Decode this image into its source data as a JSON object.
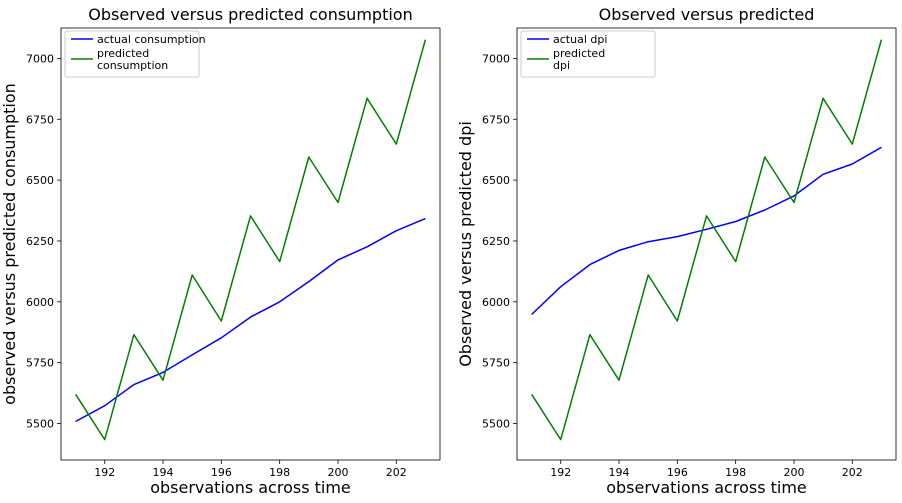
{
  "chart_data": [
    {
      "type": "line",
      "title": "Observed versus predicted consumption",
      "xlabel": "observations across time",
      "ylabel": "observed versus predicted consumption",
      "x": [
        191,
        192,
        193,
        194,
        195,
        196,
        197,
        198,
        199,
        200,
        201,
        202,
        203
      ],
      "xlim": [
        190.5,
        203.5
      ],
      "ylim": [
        5350,
        7125
      ],
      "xticks": [
        192,
        194,
        196,
        198,
        200,
        202
      ],
      "yticks": [
        5500,
        5750,
        6000,
        6250,
        6500,
        6750,
        7000
      ],
      "grid": false,
      "legend_position": "top-left",
      "series": [
        {
          "name_lines": [
            "actual consumption"
          ],
          "color": "#0000ff",
          "values": [
            5508,
            5573,
            5660,
            5710,
            5782,
            5852,
            5937,
            6000,
            6083,
            6172,
            6226,
            6292,
            6342
          ]
        },
        {
          "name_lines": [
            "predicted",
            "consumption"
          ],
          "color": "#008000",
          "values": [
            5620,
            5434,
            5865,
            5678,
            6110,
            5921,
            6353,
            6165,
            6595,
            6408,
            6836,
            6648,
            7077
          ]
        }
      ]
    },
    {
      "type": "line",
      "title": "Observed versus predicted",
      "xlabel": "observations across time",
      "ylabel": "Observed versus predicted dpi",
      "x": [
        191,
        192,
        193,
        194,
        195,
        196,
        197,
        198,
        199,
        200,
        201,
        202,
        203
      ],
      "xlim": [
        190.5,
        203.5
      ],
      "ylim": [
        5350,
        7125
      ],
      "xticks": [
        192,
        194,
        196,
        198,
        200,
        202
      ],
      "yticks": [
        5500,
        5750,
        6000,
        6250,
        6500,
        6750,
        7000
      ],
      "grid": false,
      "legend_position": "top-left",
      "series": [
        {
          "name_lines": [
            "actual dpi"
          ],
          "color": "#0000ff",
          "values": [
            5948,
            6062,
            6153,
            6211,
            6247,
            6268,
            6298,
            6330,
            6377,
            6435,
            6524,
            6566,
            6635
          ]
        },
        {
          "name_lines": [
            "predicted",
            "dpi"
          ],
          "color": "#008000",
          "values": [
            5620,
            5434,
            5865,
            5678,
            6110,
            5921,
            6353,
            6165,
            6595,
            6408,
            6836,
            6648,
            7077
          ]
        }
      ]
    }
  ]
}
